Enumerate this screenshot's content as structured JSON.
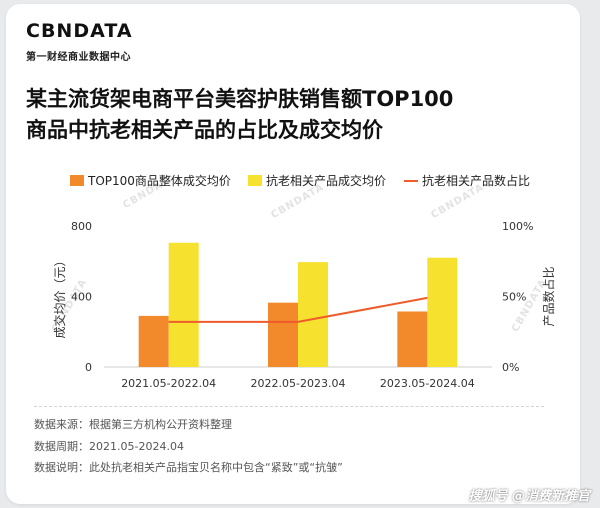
{
  "brand": {
    "name": "CBNDATA",
    "subtitle": "第一财经商业数据中心"
  },
  "watermark": "CBNDATA",
  "footer": "搜狐号 @消费新推官",
  "notes": {
    "source": "数据来源：根据第三方机构公开资料整理",
    "period": "数据周期：2021.05-2024.04",
    "explanation": "数据说明：此处抗老相关产品指宝贝名称中包含“紧致”或“抗皱”"
  },
  "colors": {
    "bar1": "#f28a2c",
    "bar2": "#f5e12e",
    "line": "#ef5b2a"
  },
  "chart_data": {
    "type": "bar",
    "title": "某主流货架电商平台美容护肤销售额TOP100商品中抗老相关产品的占比及成交均价",
    "title_lines": [
      "某主流货架电商平台美容护肤销售额TOP100",
      "商品中抗老相关产品的占比及成交均价"
    ],
    "categories": [
      "2021.05-2022.04",
      "2022.05-2023.04",
      "2023.05-2024.04"
    ],
    "series": [
      {
        "name": "TOP100商品整体成交均价",
        "type": "bar",
        "axis": "left",
        "values": [
          290,
          365,
          315
        ]
      },
      {
        "name": "抗老相关产品成交均价",
        "type": "bar",
        "axis": "left",
        "values": [
          705,
          595,
          620
        ]
      },
      {
        "name": "抗老相关产品数占比",
        "type": "line",
        "axis": "right",
        "values": [
          0.32,
          0.32,
          0.49
        ]
      }
    ],
    "ylabel": "成交均价（元）",
    "ylabel_right": "产品数占比",
    "ylim": [
      0,
      800
    ],
    "ylim_right": [
      0,
      1
    ],
    "yticks": [
      "0",
      "400",
      "800"
    ],
    "yticks_right": [
      "0%",
      "50%",
      "100%"
    ]
  }
}
